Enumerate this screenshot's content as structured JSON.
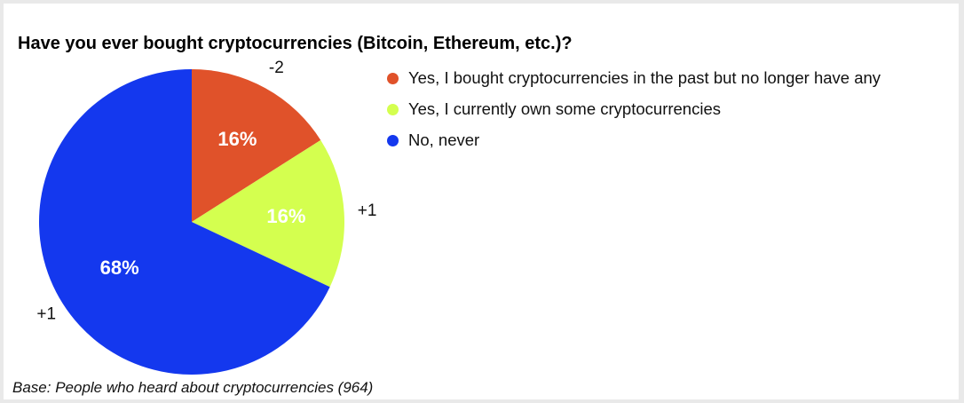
{
  "chart_data": {
    "type": "pie",
    "title": "Have you ever bought cryptocurrencies (Bitcoin, Ethereum, etc.)?",
    "slices": [
      {
        "label": "Yes, I bought cryptocurrencies in the past but no longer have any",
        "value": 16,
        "value_label": "16%",
        "change": "-2",
        "color": "#e0522a"
      },
      {
        "label": "Yes, I currently own some cryptocurrencies",
        "value": 16,
        "value_label": "16%",
        "change": "+1",
        "color": "#d4ff4f"
      },
      {
        "label": "No, never",
        "value": 68,
        "value_label": "68%",
        "change": "+1",
        "color": "#1438ee"
      }
    ],
    "legend_position": "right",
    "footnote": "Base: People who heard about cryptocurrencies (964)"
  }
}
